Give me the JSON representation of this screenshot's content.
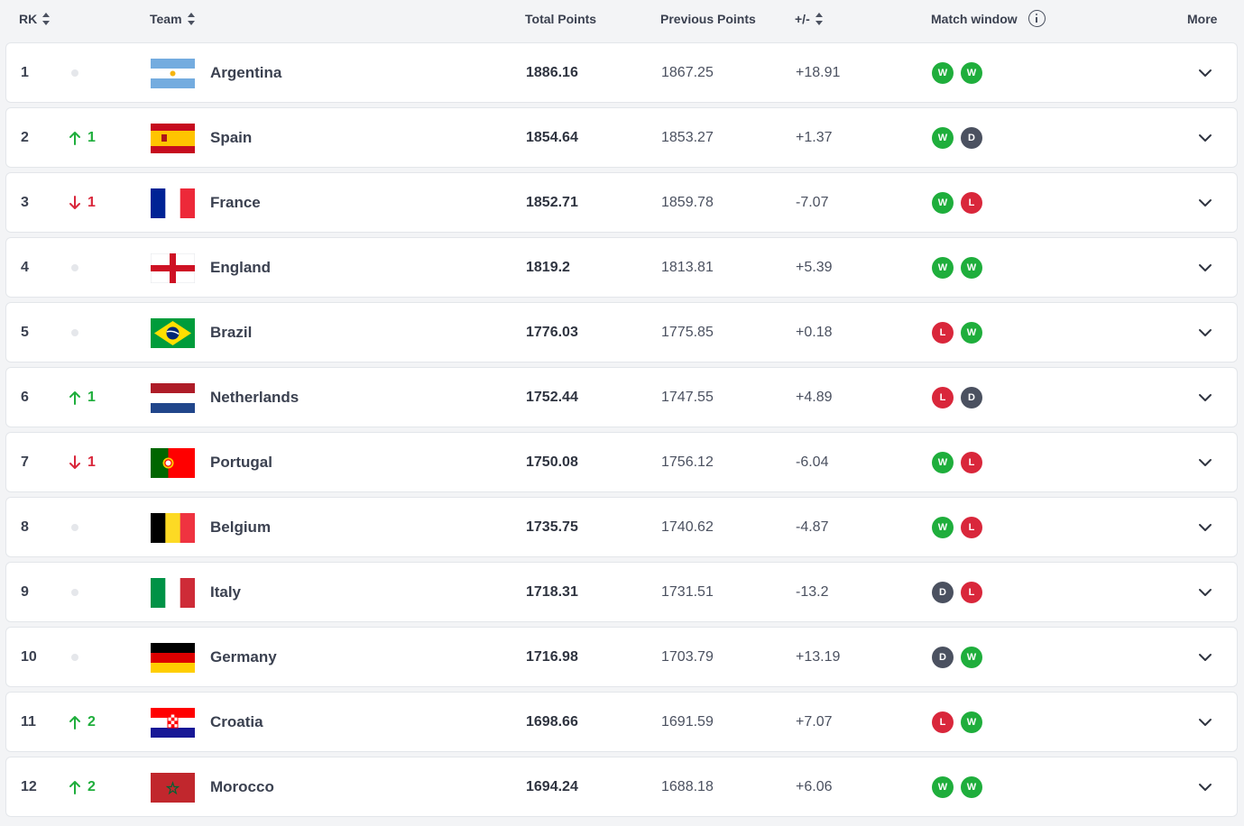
{
  "header": {
    "rank": "RK",
    "team": "Team",
    "total": "Total Points",
    "previous": "Previous Points",
    "diff": "+/-",
    "match_window": "Match window",
    "more": "More"
  },
  "colors": {
    "win": "#1fae3c",
    "draw": "#4b5160",
    "loss": "#d9273b",
    "up": "#1fae3c",
    "down": "#d9273b"
  },
  "rows": [
    {
      "rank": "1",
      "move_dir": "none",
      "move": "",
      "team": "Argentina",
      "flag": "argentina-flag-icon",
      "total": "1886.16",
      "previous": "1867.25",
      "diff": "+18.91",
      "results": [
        "W",
        "W"
      ]
    },
    {
      "rank": "2",
      "move_dir": "up",
      "move": "1",
      "team": "Spain",
      "flag": "spain-flag-icon",
      "total": "1854.64",
      "previous": "1853.27",
      "diff": "+1.37",
      "results": [
        "W",
        "D"
      ]
    },
    {
      "rank": "3",
      "move_dir": "down",
      "move": "1",
      "team": "France",
      "flag": "france-flag-icon",
      "total": "1852.71",
      "previous": "1859.78",
      "diff": "-7.07",
      "results": [
        "W",
        "L"
      ]
    },
    {
      "rank": "4",
      "move_dir": "none",
      "move": "",
      "team": "England",
      "flag": "england-flag-icon",
      "total": "1819.2",
      "previous": "1813.81",
      "diff": "+5.39",
      "results": [
        "W",
        "W"
      ]
    },
    {
      "rank": "5",
      "move_dir": "none",
      "move": "",
      "team": "Brazil",
      "flag": "brazil-flag-icon",
      "total": "1776.03",
      "previous": "1775.85",
      "diff": "+0.18",
      "results": [
        "L",
        "W"
      ]
    },
    {
      "rank": "6",
      "move_dir": "up",
      "move": "1",
      "team": "Netherlands",
      "flag": "netherlands-flag-icon",
      "total": "1752.44",
      "previous": "1747.55",
      "diff": "+4.89",
      "results": [
        "L",
        "D"
      ]
    },
    {
      "rank": "7",
      "move_dir": "down",
      "move": "1",
      "team": "Portugal",
      "flag": "portugal-flag-icon",
      "total": "1750.08",
      "previous": "1756.12",
      "diff": "-6.04",
      "results": [
        "W",
        "L"
      ]
    },
    {
      "rank": "8",
      "move_dir": "none",
      "move": "",
      "team": "Belgium",
      "flag": "belgium-flag-icon",
      "total": "1735.75",
      "previous": "1740.62",
      "diff": "-4.87",
      "results": [
        "W",
        "L"
      ]
    },
    {
      "rank": "9",
      "move_dir": "none",
      "move": "",
      "team": "Italy",
      "flag": "italy-flag-icon",
      "total": "1718.31",
      "previous": "1731.51",
      "diff": "-13.2",
      "results": [
        "D",
        "L"
      ]
    },
    {
      "rank": "10",
      "move_dir": "none",
      "move": "",
      "team": "Germany",
      "flag": "germany-flag-icon",
      "total": "1716.98",
      "previous": "1703.79",
      "diff": "+13.19",
      "results": [
        "D",
        "W"
      ]
    },
    {
      "rank": "11",
      "move_dir": "up",
      "move": "2",
      "team": "Croatia",
      "flag": "croatia-flag-icon",
      "total": "1698.66",
      "previous": "1691.59",
      "diff": "+7.07",
      "results": [
        "L",
        "W"
      ]
    },
    {
      "rank": "12",
      "move_dir": "up",
      "move": "2",
      "team": "Morocco",
      "flag": "morocco-flag-icon",
      "total": "1694.24",
      "previous": "1688.18",
      "diff": "+6.06",
      "results": [
        "W",
        "W"
      ]
    }
  ]
}
